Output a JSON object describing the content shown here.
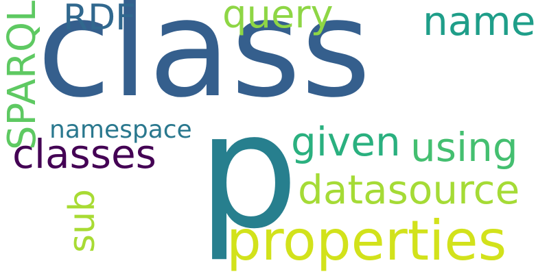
{
  "words": [
    {
      "text": "class",
      "color": "#355f8d"
    },
    {
      "text": "p",
      "color": "#277f8e"
    },
    {
      "text": "properties",
      "color": "#d2e21b"
    },
    {
      "text": "datasource",
      "color": "#a5db36"
    },
    {
      "text": "using",
      "color": "#44bf70"
    },
    {
      "text": "given",
      "color": "#2ab07f"
    },
    {
      "text": "classes",
      "color": "#440154"
    },
    {
      "text": "query",
      "color": "#8ed645"
    },
    {
      "text": "name",
      "color": "#1f9e89"
    },
    {
      "text": "RDF",
      "color": "#31688e"
    },
    {
      "text": "SPARQL",
      "color": "#5ec962"
    },
    {
      "text": "namespace",
      "color": "#2a788e"
    },
    {
      "text": "sub",
      "color": "#a8db34"
    }
  ]
}
